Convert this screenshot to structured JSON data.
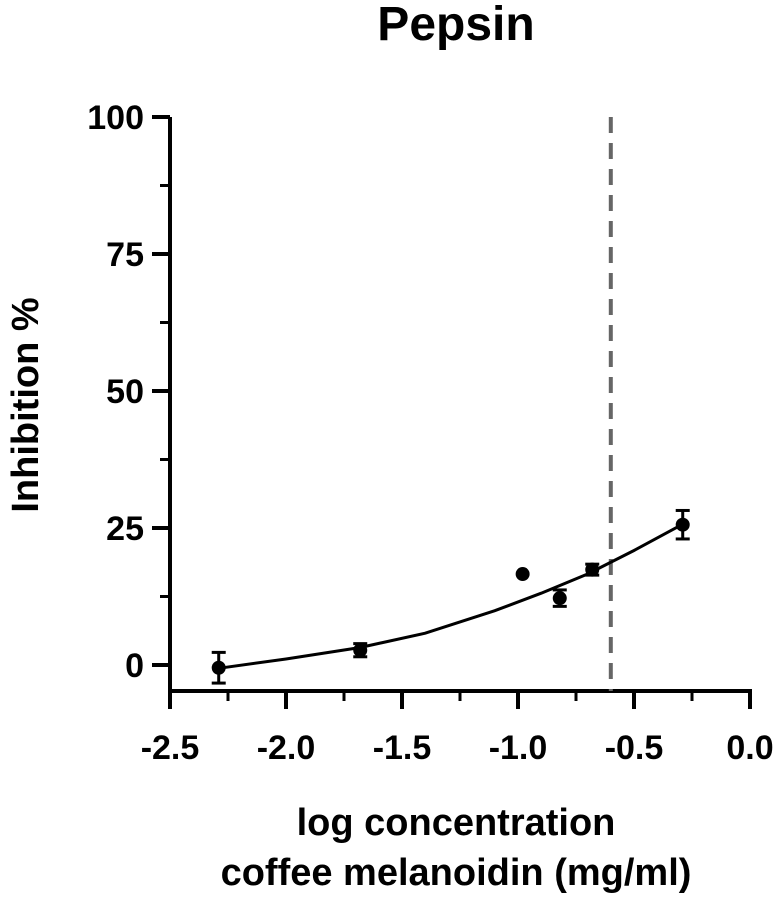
{
  "chart_data": {
    "type": "scatter",
    "title": "Pepsin",
    "xlabel_lines": [
      "log concentration",
      "coffee melanoidin (mg/ml)"
    ],
    "ylabel": "Inhibition %",
    "xlim": [
      -2.5,
      0.0
    ],
    "ylim": [
      0,
      100
    ],
    "x_ticks": [
      -2.5,
      -2.0,
      -1.5,
      -1.0,
      -0.5,
      0.0
    ],
    "x_tick_labels": [
      "-2.5",
      "-2.0",
      "-1.5",
      "-1.0",
      "-0.5",
      "0.0"
    ],
    "y_ticks": [
      0,
      25,
      50,
      75,
      100
    ],
    "y_tick_labels": [
      "0",
      "25",
      "50",
      "75",
      "100"
    ],
    "grid": false,
    "series": [
      {
        "points": [
          {
            "x": -2.29,
            "y": -0.5,
            "err": 2.8
          },
          {
            "x": -1.68,
            "y": 2.7,
            "err": 1.2
          },
          {
            "x": -0.98,
            "y": 16.6,
            "err": 0
          },
          {
            "x": -0.82,
            "y": 12.2,
            "err": 1.5
          },
          {
            "x": -0.68,
            "y": 17.4,
            "err": 1.0
          },
          {
            "x": -0.29,
            "y": 25.6,
            "err": 2.6
          }
        ]
      }
    ],
    "fit_curve": {
      "x": [
        -2.29,
        -2.0,
        -1.68,
        -1.4,
        -1.1,
        -0.9,
        -0.7,
        -0.5,
        -0.29
      ],
      "y": [
        -0.6,
        1.1,
        3.2,
        5.8,
        9.9,
        13.1,
        16.6,
        20.9,
        25.7
      ]
    },
    "reference_line": {
      "x": -0.6,
      "style": "dashed",
      "color": "#666666"
    }
  }
}
